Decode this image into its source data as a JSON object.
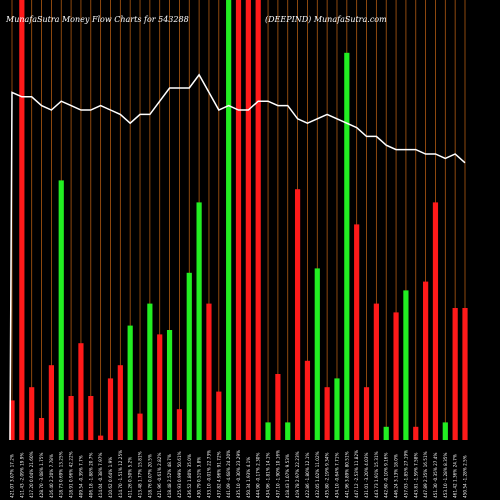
{
  "header": {
    "left_title": "MunafaSutra  Money Flow  Charts for 543288",
    "right_title": "(DEEPIND) MunafaSutra.com"
  },
  "chart_data": {
    "type": "bar",
    "title": "MunafaSutra  Money Flow  Charts for 543288",
    "subtitle": "(DEEPIND) MunafaSutra.com",
    "categories": [
      "421.07 3.07% 17.2%",
      "411.43 -2.09% 19.9%",
      "417.20 0.04% 21.60%",
      "428.70 -3.08% 1.75%",
      "416.40 2.20% 7.78%",
      "418.73 0.69% 13.25%",
      "418.91 0.96% 42.22%",
      "409.54 -0.39% 7.7%",
      "406.18 -1.88% 20.7%",
      "414.04 -0.38% 7.97%",
      "410.62 0.64% 1.9%",
      "414.70 -1.51% 12.25%",
      "411.26 0.50% 5.2%",
      "413.48 1.77% 15.81%",
      "418.76 0.07% 20.5%",
      "421.96 -0.61% 2.82%",
      "418.48 2.52% 48.7%",
      "425.93 0.99% 50.61%",
      "436.52 1.80% 35.0%",
      "430.79 0.51% 3.8%",
      "433.10 -0.01% 22.73%",
      "437.82 4.96% 91.72%",
      "441.09 -4.68% 24.20%",
      "435.10 -0.30% 23.29%",
      "450.34 1.93% 4.1%",
      "444.90 -0.17% 2.30%",
      "434.96 -1.81% 14.1%",
      "437.10 -1.90% 10.16%",
      "418.43 1.07% 9.53%",
      "419.78 2.97% 22.23%",
      "422.86 -1.80% 12.1%",
      "432.05 1.02% 11.02%",
      "435.80 -2.19% 9.34%",
      "434.10 -0.64% 7.71%",
      "441.96 3.89% 80.51%",
      "447.12 -2.53% 11.82%",
      "431.01 -3.20% 4.03%",
      "443.73 1.91% 15.31%",
      "442.60 -0.10% 9.16%",
      "446.24 3.13% 18.0%",
      "457.03 -1.85% 27.19%",
      "443.81 -1.59% 7.58%",
      "447.89 2.35% 16.51%",
      "451.30 -0.35% 27.4%",
      "453.10 -1.28% 8.35%",
      "461.42 1.36% 24.7%",
      "450.54 -1.28% 2.5%"
    ],
    "series": [
      {
        "colors": [
          "red",
          "red",
          "red",
          "red",
          "red",
          "green",
          "red",
          "red",
          "red",
          "red",
          "red",
          "red",
          "green",
          "red",
          "green",
          "red",
          "green",
          "red",
          "green",
          "green",
          "red",
          "red",
          "green",
          "red",
          "red",
          "red",
          "green",
          "red",
          "green",
          "red",
          "red",
          "green",
          "red",
          "green",
          "green",
          "red",
          "red",
          "red",
          "green",
          "red",
          "green",
          "red",
          "red",
          "red",
          "green",
          "red",
          "red"
        ],
        "values": [
          9,
          100,
          12,
          5,
          17,
          59,
          10,
          22,
          10,
          1,
          14,
          17,
          26,
          6,
          31,
          24,
          25,
          7,
          38,
          54,
          31,
          11,
          100,
          100,
          100,
          100,
          4,
          15,
          4,
          57,
          18,
          39,
          12,
          14,
          88,
          49,
          12,
          31,
          3,
          29,
          34,
          3,
          36,
          54,
          4,
          30,
          30
        ]
      }
    ],
    "line": {
      "values": [
        79,
        78,
        78,
        76,
        75,
        77,
        76,
        75,
        75,
        76,
        75,
        74,
        72,
        74,
        74,
        77,
        80,
        80,
        80,
        83,
        79,
        75,
        76,
        75,
        75,
        77,
        77,
        76,
        76,
        73,
        72,
        73,
        74,
        73,
        72,
        71,
        69,
        69,
        67,
        66,
        66,
        66,
        65,
        65,
        64,
        65,
        63
      ],
      "start": 0
    },
    "ylim": [
      0,
      100
    ],
    "grid": true,
    "colors": {
      "up": "#22ee22",
      "down": "#ff1a1a",
      "line": "#ffffff",
      "grid": "#b05a12",
      "background": "#000000"
    }
  }
}
